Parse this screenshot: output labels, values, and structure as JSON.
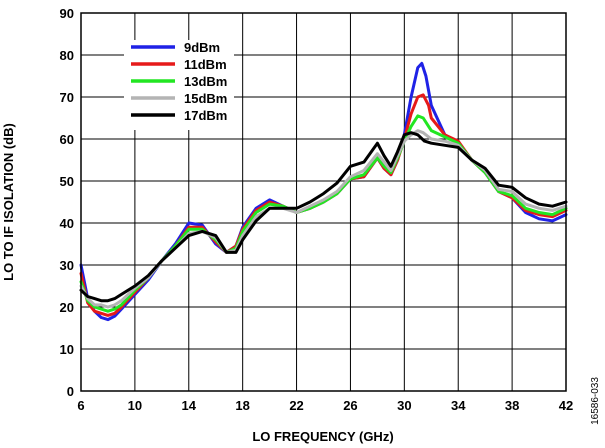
{
  "chart_data": {
    "type": "line",
    "xlabel": "LO FREQUENCY (GHz)",
    "ylabel": "LO TO IF ISOLATION (dB)",
    "xlim": [
      6,
      42
    ],
    "ylim": [
      0,
      90
    ],
    "xticks": [
      6,
      10,
      14,
      18,
      22,
      26,
      30,
      34,
      38,
      42
    ],
    "yticks": [
      0,
      10,
      20,
      30,
      40,
      50,
      60,
      70,
      80,
      90
    ],
    "grid": true,
    "legend_position": "top-left",
    "series": [
      {
        "name": "9dBm",
        "color": "#1f22e6",
        "points": [
          [
            6,
            30
          ],
          [
            6.5,
            22
          ],
          [
            7,
            19
          ],
          [
            7.5,
            17.5
          ],
          [
            8,
            17
          ],
          [
            8.5,
            17.8
          ],
          [
            9,
            19.5
          ],
          [
            10,
            23
          ],
          [
            11,
            26.5
          ],
          [
            12,
            31
          ],
          [
            13,
            35
          ],
          [
            14,
            40
          ],
          [
            15,
            39.5
          ],
          [
            16,
            35
          ],
          [
            16.8,
            33
          ],
          [
            17.5,
            34.5
          ],
          [
            18,
            39
          ],
          [
            19,
            43.5
          ],
          [
            20,
            45.5
          ],
          [
            21,
            44
          ],
          [
            22,
            42.5
          ],
          [
            23,
            43.5
          ],
          [
            24,
            45
          ],
          [
            25,
            47
          ],
          [
            26,
            50.5
          ],
          [
            27,
            51
          ],
          [
            28,
            55.5
          ],
          [
            28.5,
            53
          ],
          [
            29,
            51.5
          ],
          [
            29.5,
            55
          ],
          [
            30,
            61
          ],
          [
            30.5,
            70
          ],
          [
            31,
            77
          ],
          [
            31.3,
            78
          ],
          [
            31.6,
            75
          ],
          [
            32,
            68
          ],
          [
            33,
            61
          ],
          [
            34,
            59
          ],
          [
            35,
            55
          ],
          [
            36,
            52
          ],
          [
            37,
            47.5
          ],
          [
            38,
            46
          ],
          [
            39,
            42.5
          ],
          [
            40,
            41
          ],
          [
            41,
            40.5
          ],
          [
            42,
            42
          ]
        ]
      },
      {
        "name": "11dBm",
        "color": "#e61a1a",
        "points": [
          [
            6,
            28
          ],
          [
            6.5,
            21
          ],
          [
            7,
            19
          ],
          [
            7.5,
            18.5
          ],
          [
            8,
            18
          ],
          [
            8.5,
            18.5
          ],
          [
            9,
            20
          ],
          [
            10,
            23.5
          ],
          [
            11,
            27
          ],
          [
            12,
            31
          ],
          [
            13,
            34.5
          ],
          [
            14,
            39
          ],
          [
            15,
            39
          ],
          [
            16,
            35.5
          ],
          [
            16.8,
            33
          ],
          [
            17.5,
            34.5
          ],
          [
            18,
            38.5
          ],
          [
            19,
            43
          ],
          [
            20,
            45
          ],
          [
            21,
            44
          ],
          [
            22,
            42.5
          ],
          [
            23,
            43.5
          ],
          [
            24,
            45
          ],
          [
            25,
            47
          ],
          [
            26,
            50.5
          ],
          [
            27,
            51
          ],
          [
            28,
            55.5
          ],
          [
            28.5,
            53
          ],
          [
            29,
            51.5
          ],
          [
            29.5,
            55
          ],
          [
            30,
            60
          ],
          [
            30.5,
            66
          ],
          [
            31,
            70
          ],
          [
            31.4,
            70.5
          ],
          [
            31.8,
            68
          ],
          [
            32,
            65
          ],
          [
            33,
            61
          ],
          [
            34,
            59.5
          ],
          [
            35,
            55
          ],
          [
            36,
            52
          ],
          [
            37,
            47.5
          ],
          [
            38,
            46
          ],
          [
            39,
            43
          ],
          [
            40,
            42
          ],
          [
            41,
            41.5
          ],
          [
            42,
            43
          ]
        ]
      },
      {
        "name": "13dBm",
        "color": "#22e622",
        "points": [
          [
            6,
            26
          ],
          [
            6.5,
            21.5
          ],
          [
            7,
            20
          ],
          [
            7.5,
            19.5
          ],
          [
            8,
            19
          ],
          [
            8.5,
            19.5
          ],
          [
            9,
            20.5
          ],
          [
            10,
            24
          ],
          [
            11,
            27
          ],
          [
            12,
            31
          ],
          [
            13,
            34.5
          ],
          [
            14,
            38.5
          ],
          [
            15,
            38.5
          ],
          [
            16,
            36
          ],
          [
            16.8,
            33
          ],
          [
            17.5,
            34
          ],
          [
            18,
            38
          ],
          [
            19,
            42.5
          ],
          [
            20,
            44.5
          ],
          [
            21,
            44
          ],
          [
            22,
            42.5
          ],
          [
            23,
            43.5
          ],
          [
            24,
            45
          ],
          [
            25,
            47
          ],
          [
            26,
            50.5
          ],
          [
            27,
            51.5
          ],
          [
            28,
            55.5
          ],
          [
            28.5,
            53.5
          ],
          [
            29,
            52
          ],
          [
            29.5,
            55.5
          ],
          [
            30,
            59.5
          ],
          [
            30.5,
            63
          ],
          [
            31,
            65.5
          ],
          [
            31.4,
            65
          ],
          [
            31.8,
            63
          ],
          [
            32,
            62
          ],
          [
            33,
            60.5
          ],
          [
            34,
            59
          ],
          [
            35,
            55
          ],
          [
            36,
            52
          ],
          [
            37,
            47.5
          ],
          [
            38,
            46.5
          ],
          [
            39,
            43.5
          ],
          [
            40,
            42.5
          ],
          [
            41,
            42
          ],
          [
            42,
            43.5
          ]
        ]
      },
      {
        "name": "15dBm",
        "color": "#b4b4b4",
        "points": [
          [
            6,
            25
          ],
          [
            6.5,
            22
          ],
          [
            7,
            20.5
          ],
          [
            7.5,
            20.5
          ],
          [
            8,
            20
          ],
          [
            8.5,
            20.5
          ],
          [
            9,
            21.5
          ],
          [
            10,
            24.5
          ],
          [
            11,
            27
          ],
          [
            12,
            31
          ],
          [
            13,
            34
          ],
          [
            14,
            37.5
          ],
          [
            15,
            38
          ],
          [
            16,
            36.5
          ],
          [
            16.8,
            33
          ],
          [
            17.5,
            33.5
          ],
          [
            18,
            37
          ],
          [
            19,
            41.5
          ],
          [
            20,
            43.5
          ],
          [
            21,
            43.5
          ],
          [
            22,
            42.5
          ],
          [
            23,
            44
          ],
          [
            24,
            45.5
          ],
          [
            25,
            47.5
          ],
          [
            26,
            51
          ],
          [
            27,
            52.5
          ],
          [
            28,
            56.5
          ],
          [
            28.5,
            54.5
          ],
          [
            29,
            52.5
          ],
          [
            29.5,
            56
          ],
          [
            30,
            59.5
          ],
          [
            30.5,
            61
          ],
          [
            31,
            62
          ],
          [
            31.4,
            61.5
          ],
          [
            31.8,
            60.5
          ],
          [
            32,
            60
          ],
          [
            33,
            59.5
          ],
          [
            34,
            58.5
          ],
          [
            35,
            55
          ],
          [
            36,
            52.5
          ],
          [
            37,
            48
          ],
          [
            38,
            47.5
          ],
          [
            39,
            44.5
          ],
          [
            40,
            43.5
          ],
          [
            41,
            43
          ],
          [
            42,
            44
          ]
        ]
      },
      {
        "name": "17dBm",
        "color": "#000000",
        "points": [
          [
            6,
            24
          ],
          [
            6.5,
            22.5
          ],
          [
            7,
            22
          ],
          [
            7.5,
            21.5
          ],
          [
            8,
            21.5
          ],
          [
            8.5,
            22
          ],
          [
            9,
            23
          ],
          [
            10,
            25
          ],
          [
            11,
            27.5
          ],
          [
            12,
            31
          ],
          [
            13,
            34
          ],
          [
            14,
            37
          ],
          [
            15,
            38
          ],
          [
            16,
            37
          ],
          [
            16.8,
            33
          ],
          [
            17.5,
            33
          ],
          [
            18,
            36
          ],
          [
            19,
            40.5
          ],
          [
            20,
            43.5
          ],
          [
            21,
            43.5
          ],
          [
            22,
            43.5
          ],
          [
            23,
            45
          ],
          [
            24,
            47
          ],
          [
            25,
            49.5
          ],
          [
            26,
            53.5
          ],
          [
            27,
            54.5
          ],
          [
            28,
            59
          ],
          [
            28.5,
            56
          ],
          [
            29,
            53.5
          ],
          [
            29.5,
            57
          ],
          [
            30,
            61
          ],
          [
            30.5,
            61.5
          ],
          [
            31,
            61
          ],
          [
            31.5,
            59.5
          ],
          [
            32,
            59
          ],
          [
            33,
            58.5
          ],
          [
            34,
            58
          ],
          [
            35,
            55
          ],
          [
            36,
            53
          ],
          [
            37,
            49
          ],
          [
            38,
            48.5
          ],
          [
            39,
            46
          ],
          [
            40,
            44.5
          ],
          [
            41,
            44
          ],
          [
            42,
            45
          ]
        ]
      }
    ]
  },
  "side_code": "16586-033"
}
